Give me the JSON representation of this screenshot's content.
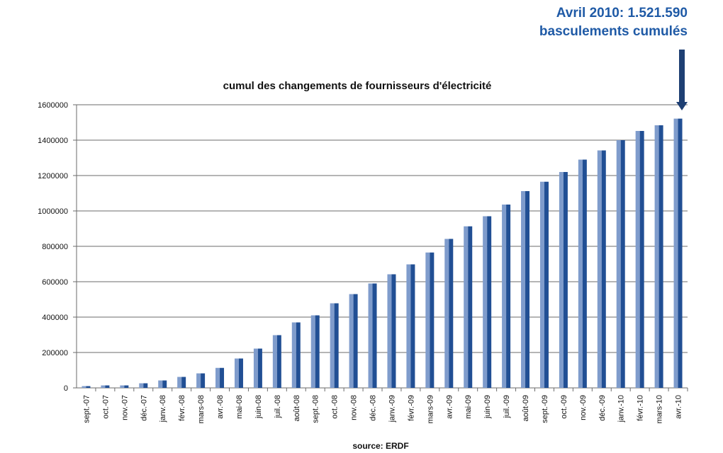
{
  "annotation": {
    "line1": "Avril 2010: 1.521.590",
    "line2": "basculements cumulés"
  },
  "source": "source: ERDF",
  "colors": {
    "bar_light": "#7f9ccc",
    "bar_dark": "#214f94",
    "annotation": "#1f5aa6",
    "arrow": "#1e3f73",
    "grid": "#6b6b6b"
  },
  "chart_data": {
    "type": "bar",
    "title": "cumul des changements de fournisseurs d'électricité",
    "xlabel": "",
    "ylabel": "",
    "ylim": [
      0,
      1600000
    ],
    "yticks": [
      0,
      200000,
      400000,
      600000,
      800000,
      1000000,
      1200000,
      1400000,
      1600000
    ],
    "grid": true,
    "legend": "none",
    "categories": [
      "sept.-07",
      "oct.-07",
      "nov.-07",
      "déc.-07",
      "janv.-08",
      "févr.-08",
      "mars-08",
      "avr.-08",
      "mai-08",
      "juin-08",
      "juil.-08",
      "août-08",
      "sept.-08",
      "oct.-08",
      "nov.-08",
      "déc.-08",
      "janv.-09",
      "févr.-09",
      "mars-09",
      "avr.-09",
      "mai-09",
      "juin-09",
      "juil.-09",
      "août-09",
      "sept.-09",
      "oct.-09",
      "nov.-09",
      "déc.-09",
      "janv.-10",
      "févr.-10",
      "mars-10",
      "avr.-10"
    ],
    "values": [
      10000,
      14000,
      14000,
      26000,
      42000,
      62000,
      82000,
      113000,
      166000,
      222000,
      298000,
      370000,
      410000,
      478000,
      530000,
      590000,
      642000,
      698000,
      765000,
      842000,
      913000,
      970000,
      1036000,
      1112000,
      1165000,
      1220000,
      1290000,
      1342000,
      1400000,
      1452000,
      1484000,
      1521590
    ]
  }
}
